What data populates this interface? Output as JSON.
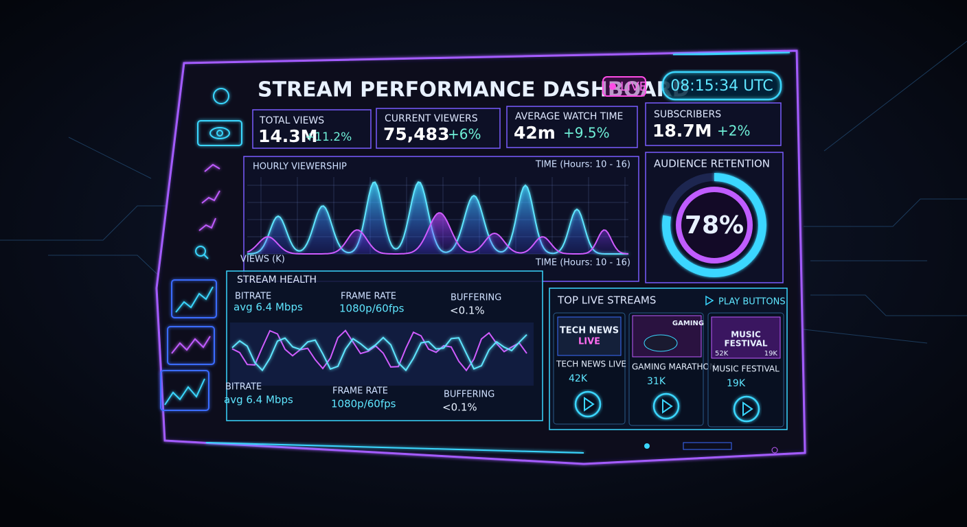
{
  "header": {
    "title": "STREAM PERFORMANCE DASHBOARD",
    "live": "LIVE",
    "clock": "08:15:34 UTC"
  },
  "stats": [
    {
      "label": "TOTAL VIEWS",
      "value": "14.3M",
      "change": "+11.2%"
    },
    {
      "label": "CURRENT VIEWERS",
      "value": "75,483",
      "change": "+6%"
    },
    {
      "label": "AVERAGE WATCH TIME",
      "value": "42m",
      "change": "+9.5%"
    },
    {
      "label": "SUBSCRIBERS",
      "value": "18.7M",
      "change": "+2%"
    }
  ],
  "hourly_viewership": {
    "title": "HOURLY VIEWERSHIP",
    "x_label": "TIME (Hours: 10 - 16)",
    "y_label": "VIEWS (K)"
  },
  "audience_retention": {
    "title": "AUDIENCE RETENTION",
    "value": 78,
    "label": "78%"
  },
  "stream_health": {
    "title": "STREAM HEALTH",
    "metrics_top": [
      {
        "label": "BITRATE",
        "value": "avg 6.4 Mbps"
      },
      {
        "label": "FRAME RATE",
        "value": "1080p/60fps"
      },
      {
        "label": "BUFFERING",
        "value": "<0.1%"
      }
    ],
    "metrics_bottom": [
      {
        "label": "BITRATE",
        "value": "avg 6.4 Mbps"
      },
      {
        "label": "FRAME RATE",
        "value": "1080p/60fps"
      },
      {
        "label": "BUFFERING",
        "value": "<0.1%"
      }
    ]
  },
  "top_live_streams": {
    "title": "TOP LIVE STREAMS",
    "action": "PLAY BUTTONS",
    "streams": [
      {
        "thumbnail_text": [
          "TECH NEWS",
          "LIVE"
        ],
        "name": "TECH NEWS LIVE",
        "viewers": "42K"
      },
      {
        "thumbnail_text": [
          "GAMING"
        ],
        "name": "GAMING MARATHON",
        "viewers": "31K"
      },
      {
        "thumbnail_text": [
          "MUSIC",
          "FESTIVAL"
        ],
        "thumbnail_stats": [
          "52K",
          "19K"
        ],
        "name": "MUSIC FESTIVAL",
        "viewers": "19K"
      }
    ]
  }
}
